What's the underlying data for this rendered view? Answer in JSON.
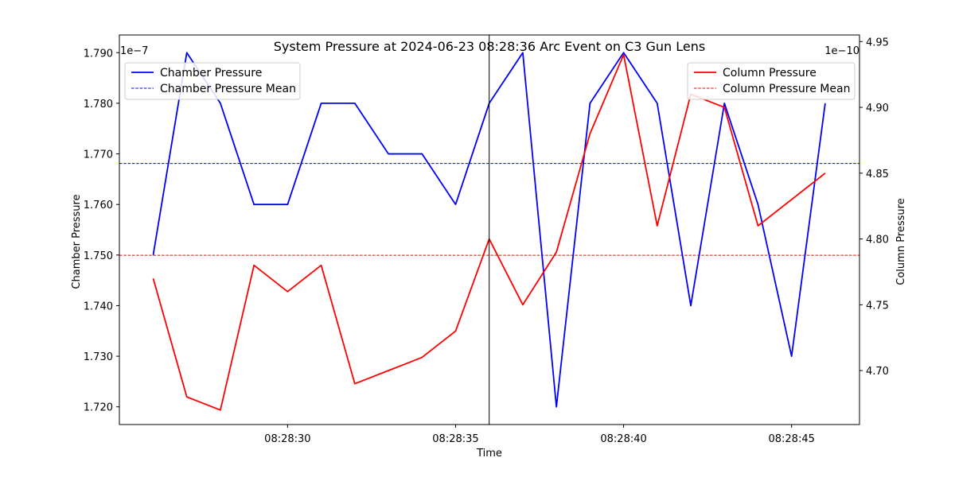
{
  "chart_data": {
    "type": "line",
    "title": "System Pressure at 2024-06-23 08:28:36 Arc Event on C3 Gun Lens",
    "xlabel": "Time",
    "ylabel_left": "Chamber Pressure",
    "ylabel_right": "Column Pressure",
    "left_offset_text": "1e−7",
    "right_offset_text": "1e−10",
    "x": [
      "08:28:26",
      "08:28:27",
      "08:28:28",
      "08:28:29",
      "08:28:30",
      "08:28:31",
      "08:28:32",
      "08:28:33",
      "08:28:34",
      "08:28:35",
      "08:28:36",
      "08:28:37",
      "08:28:38",
      "08:28:39",
      "08:28:40",
      "08:28:41",
      "08:28:42",
      "08:28:43",
      "08:28:44",
      "08:28:45",
      "08:28:46"
    ],
    "x_ticks": [
      "08:28:30",
      "08:28:35",
      "08:28:40",
      "08:28:45"
    ],
    "event_time": "08:28:36",
    "left_ylim": [
      1.7165,
      1.7935
    ],
    "left_ticks": [
      "1.720",
      "1.730",
      "1.740",
      "1.750",
      "1.760",
      "1.770",
      "1.780",
      "1.790"
    ],
    "right_ylim": [
      4.659,
      4.955
    ],
    "right_ticks": [
      "4.70",
      "4.75",
      "4.80",
      "4.85",
      "4.90",
      "4.95"
    ],
    "series": [
      {
        "name": "Chamber Pressure",
        "axis": "left",
        "color": "#0000ff",
        "values": [
          1.75,
          1.79,
          1.78,
          1.76,
          1.76,
          1.78,
          1.78,
          1.77,
          1.77,
          1.76,
          1.78,
          1.79,
          1.72,
          1.78,
          1.79,
          1.78,
          1.74,
          1.78,
          1.76,
          1.73,
          1.78
        ]
      },
      {
        "name": "Column Pressure",
        "axis": "right",
        "color": "#ff0000",
        "values": [
          4.77,
          4.68,
          4.67,
          4.78,
          4.76,
          4.78,
          4.69,
          4.7,
          4.71,
          4.73,
          4.8,
          4.75,
          4.79,
          4.88,
          4.94,
          4.81,
          4.91,
          4.9,
          4.81,
          4.83,
          4.85
        ]
      }
    ],
    "mean_lines": [
      {
        "name": "Chamber Pressure Mean",
        "axis": "left",
        "color": "#0000ff",
        "value": 1.7681
      },
      {
        "name": "Column Pressure Mean",
        "axis": "right",
        "color": "#ff0000",
        "value": 4.7876
      }
    ],
    "legend_left": [
      "Chamber Pressure",
      "Chamber Pressure Mean"
    ],
    "legend_right": [
      "Column Pressure",
      "Column Pressure Mean"
    ],
    "legend_left_position": "upper left",
    "legend_right_position": "upper right",
    "grid": false
  }
}
